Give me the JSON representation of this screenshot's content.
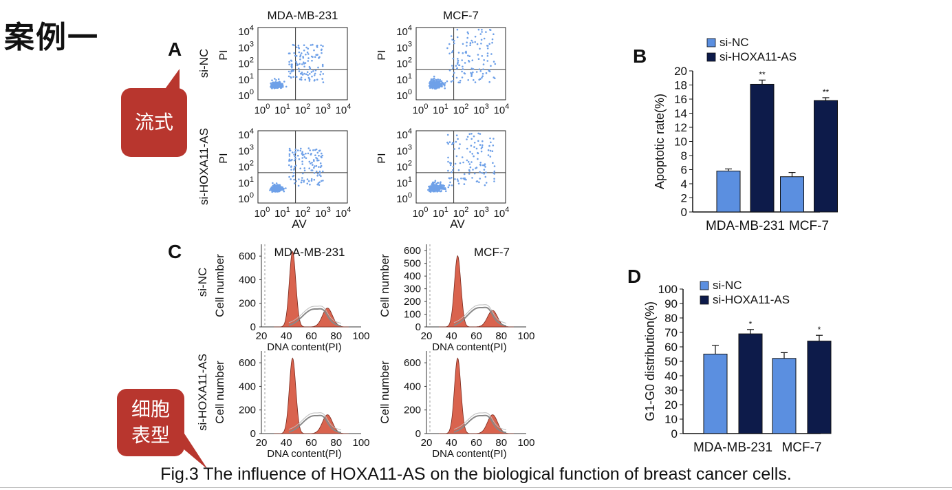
{
  "case_title": "案例一",
  "callouts": {
    "flow": "流式",
    "cell_phenotype_line1": "细胞",
    "cell_phenotype_line2": "表型"
  },
  "panels": {
    "A": {
      "letter": "A",
      "columns": [
        "MDA-MB-231",
        "MCF-7"
      ],
      "row_labels": [
        "si-NC",
        "si-HOXA11-AS"
      ],
      "y_label": "PI",
      "x_label": "AV",
      "tick_exponents": [
        "0",
        "1",
        "2",
        "3",
        "4"
      ],
      "tick_base": "10"
    },
    "B": {
      "letter": "B"
    },
    "C": {
      "letter": "C",
      "columns": [
        "MDA-MB-231",
        "MCF-7"
      ],
      "row_labels": [
        "si-NC",
        "si-HOXA11-AS"
      ],
      "y_label": "Cell number",
      "x_label": "DNA content(PI)",
      "x_ticks": [
        "20",
        "40",
        "60",
        "80",
        "100"
      ]
    },
    "D": {
      "letter": "D"
    }
  },
  "caption": "Fig.3 The influence of HOXA11-AS on the biological function of breast cancer cells.",
  "colors": {
    "si_nc": "#5b8fe0",
    "si_hoxa11": "#0d1b4a",
    "callout": "#b8362e",
    "histogram": "#d9634e"
  },
  "chart_data": [
    {
      "id": "B",
      "type": "bar",
      "categories": [
        "MDA-MB-231",
        "MCF-7"
      ],
      "series": [
        {
          "name": "si-NC",
          "values": [
            5.8,
            5.0
          ],
          "errors": [
            0.3,
            0.6
          ]
        },
        {
          "name": "si-HOXA11-AS",
          "values": [
            18.1,
            15.8
          ],
          "errors": [
            0.6,
            0.4
          ]
        }
      ],
      "annotations": [
        "**",
        "**"
      ],
      "ylabel": "Apoptotic rate(%)",
      "ylim": [
        0,
        20
      ],
      "yticks": [
        0,
        2,
        4,
        6,
        8,
        10,
        12,
        14,
        16,
        18,
        20
      ],
      "legend": "top-left"
    },
    {
      "id": "D",
      "type": "bar",
      "categories": [
        "MDA-MB-231",
        "MCF-7"
      ],
      "series": [
        {
          "name": "si-NC",
          "values": [
            55,
            52
          ],
          "errors": [
            6,
            4
          ]
        },
        {
          "name": "si-HOXA11-AS",
          "values": [
            69,
            64
          ],
          "errors": [
            3,
            4
          ]
        }
      ],
      "annotations": [
        "*",
        "*"
      ],
      "ylabel": "G1-G0 distribution(%)",
      "ylim": [
        0,
        100
      ],
      "yticks": [
        0,
        10,
        20,
        30,
        40,
        50,
        60,
        70,
        80,
        90,
        100
      ],
      "legend": "top-left"
    },
    {
      "id": "C",
      "type": "area",
      "xlabel": "DNA content(PI)",
      "ylabel": "Cell number",
      "xlim": [
        20,
        100
      ],
      "plots": [
        {
          "column": "MDA-MB-231",
          "row": "si-NC",
          "ylim": [
            0,
            700
          ],
          "yticks": [
            0,
            200,
            400,
            600
          ]
        },
        {
          "column": "MCF-7",
          "row": "si-NC",
          "ylim": [
            0,
            650
          ],
          "yticks": [
            0,
            100,
            200,
            300,
            400,
            500,
            600
          ]
        },
        {
          "column": "MDA-MB-231",
          "row": "si-HOXA11-AS",
          "ylim": [
            0,
            700
          ],
          "yticks": [
            0,
            200,
            400,
            600
          ]
        },
        {
          "column": "MCF-7",
          "row": "si-HOXA11-AS",
          "ylim": [
            0,
            700
          ],
          "yticks": [
            0,
            200,
            400,
            600
          ]
        }
      ]
    }
  ]
}
